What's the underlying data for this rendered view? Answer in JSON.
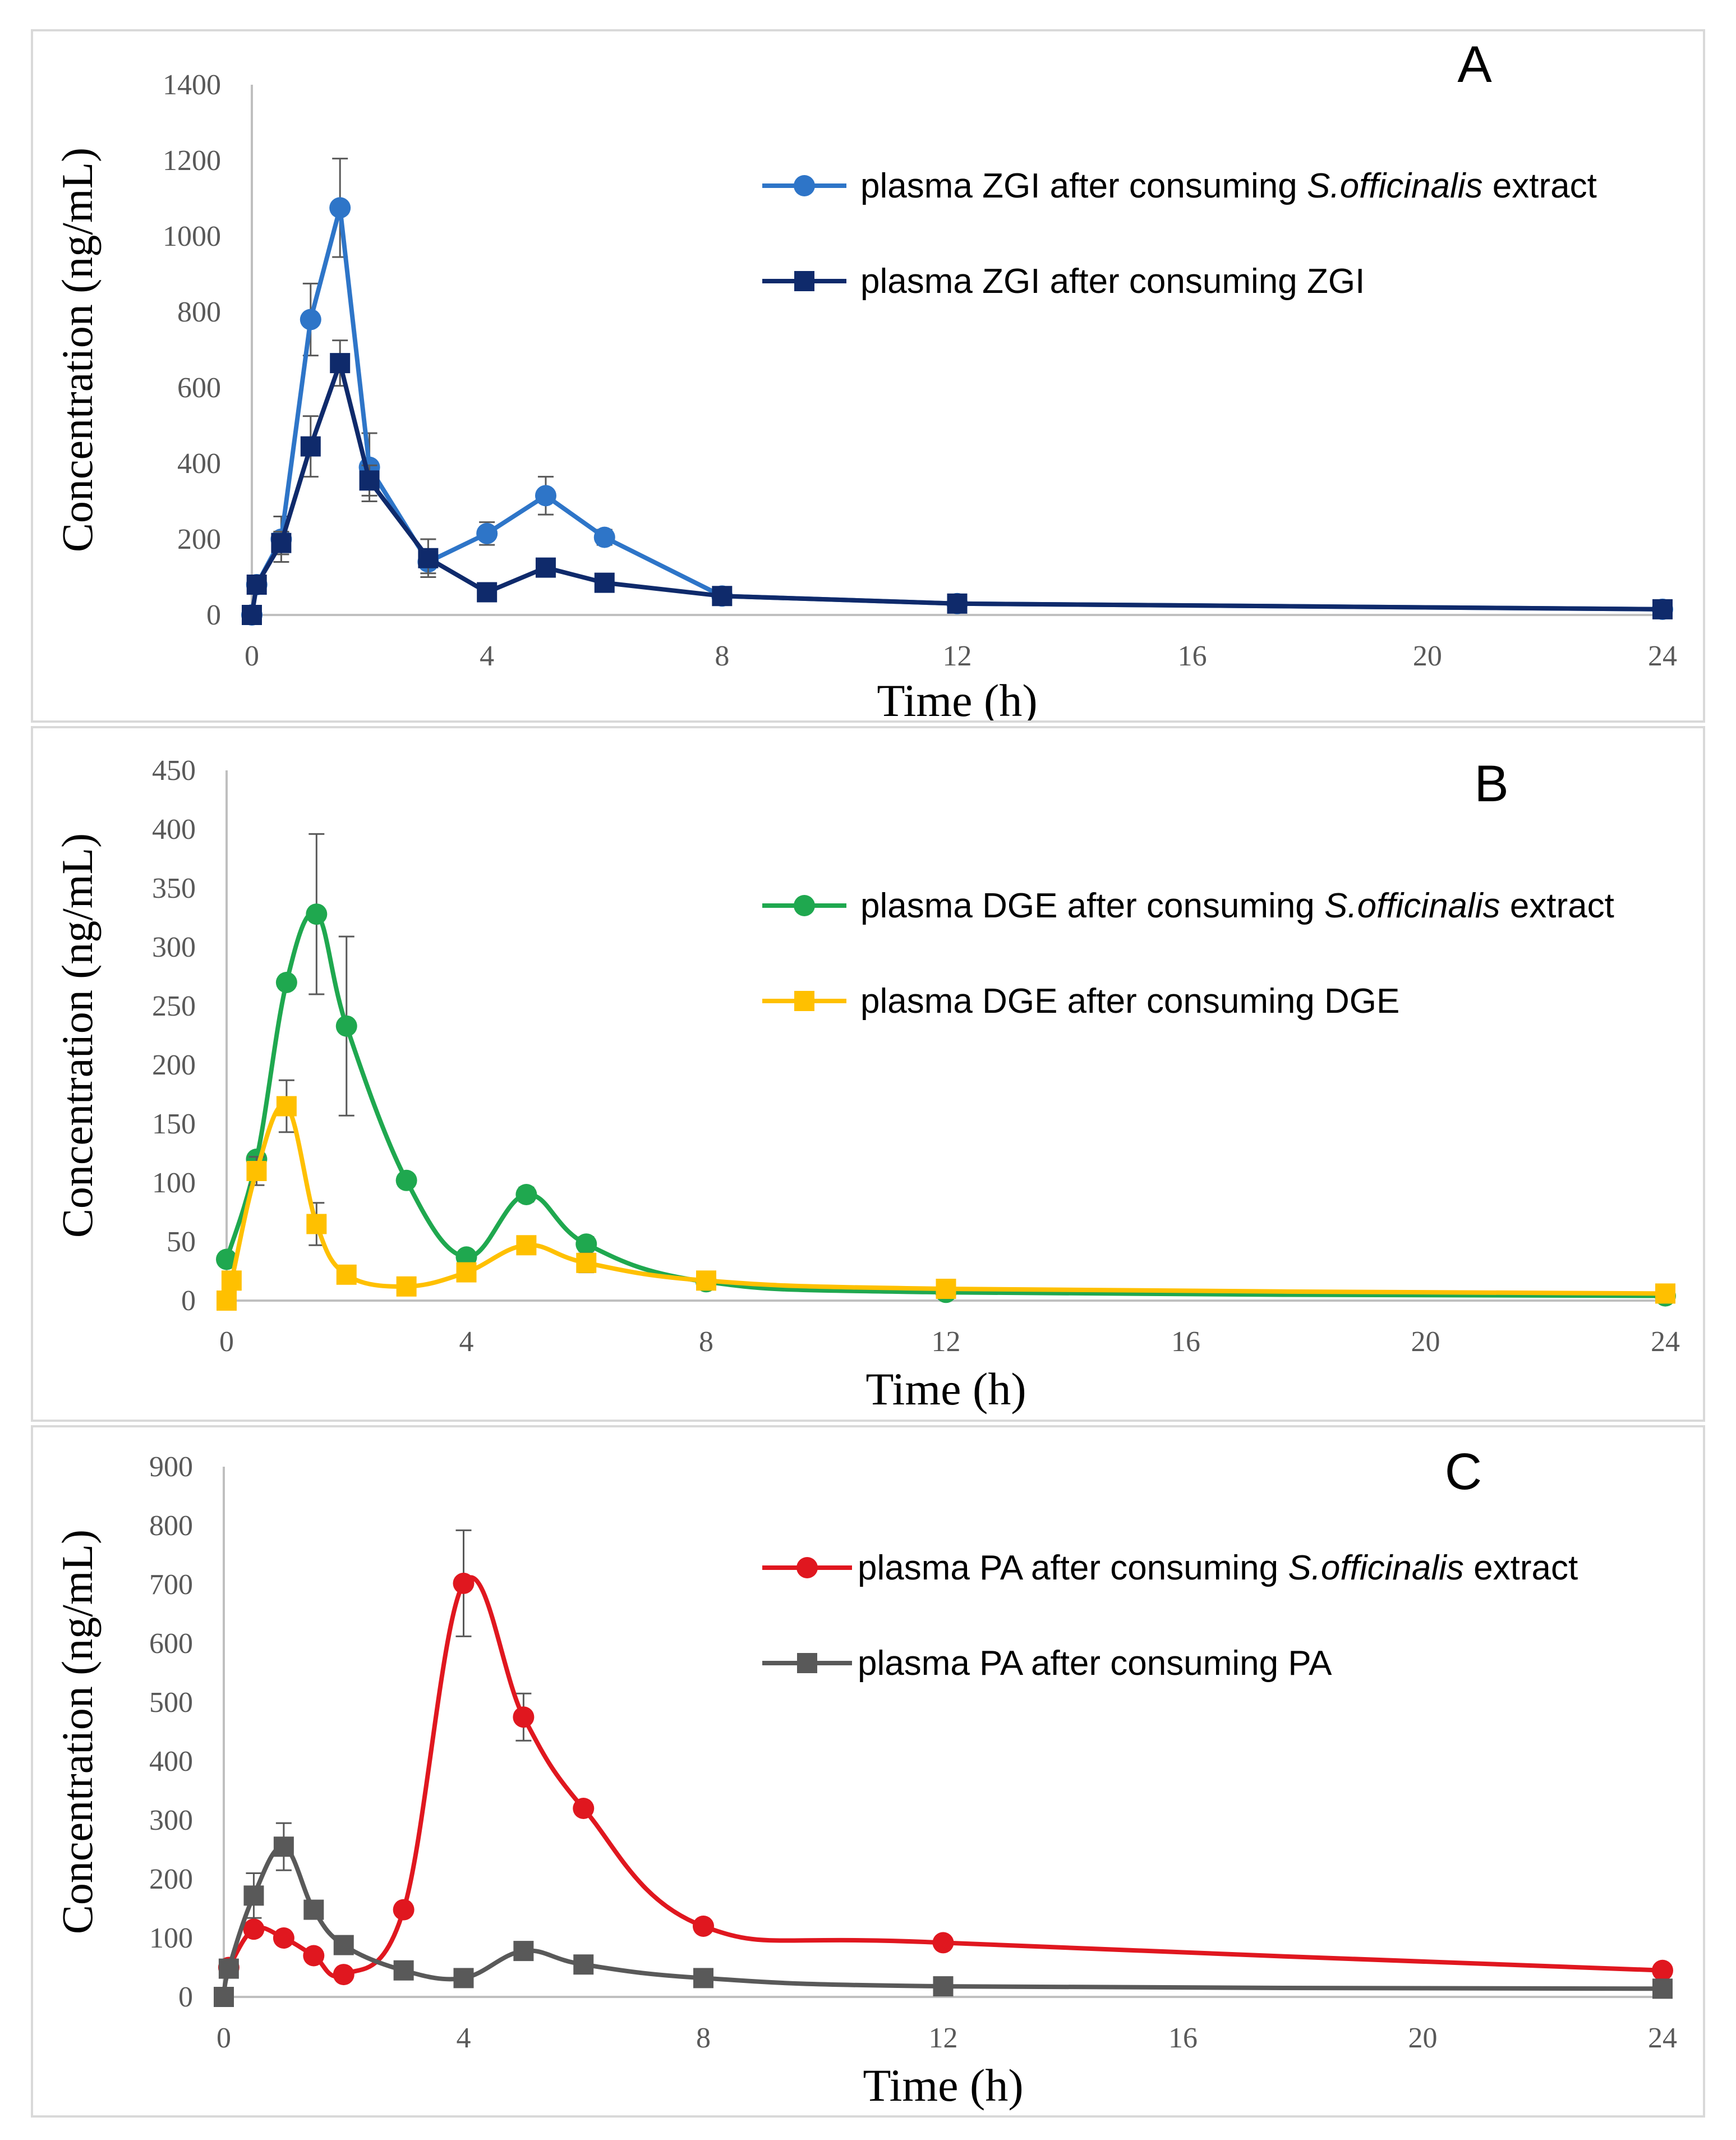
{
  "chart_data": [
    {
      "type": "line",
      "panel_label": "A",
      "xlabel": "Time (h)",
      "ylabel": "Concentration (ng/mL)",
      "xlim": [
        0,
        24
      ],
      "ylim": [
        0,
        1400
      ],
      "xticks": [
        0,
        4,
        8,
        12,
        16,
        20,
        24
      ],
      "yticks": [
        0,
        200,
        400,
        600,
        800,
        1000,
        1200,
        1400
      ],
      "grid": false,
      "legend_position": "top-right",
      "smooth": false,
      "series": [
        {
          "legend_prefix": "plasma ZGI after consuming ",
          "legend_italic": "S.officinalis",
          "legend_suffix": " extract",
          "color": "#2e75c8",
          "marker": "circle",
          "x": [
            0,
            0.083,
            0.5,
            1,
            1.5,
            2,
            3,
            4,
            5,
            6,
            8,
            12,
            24
          ],
          "y": [
            0,
            80,
            200,
            780,
            1075,
            390,
            140,
            215,
            315,
            205,
            50,
            30,
            15
          ],
          "err": [
            0,
            20,
            60,
            95,
            130,
            90,
            30,
            30,
            50,
            20,
            0,
            0,
            0
          ]
        },
        {
          "legend_prefix": "plasma ZGI after consuming ZGI",
          "legend_italic": "",
          "legend_suffix": "",
          "color": "#0f2a6b",
          "marker": "square",
          "x": [
            0,
            0.083,
            0.5,
            1,
            1.5,
            2,
            3,
            4,
            5,
            6,
            8,
            12,
            24
          ],
          "y": [
            0,
            80,
            190,
            445,
            665,
            355,
            150,
            60,
            125,
            85,
            50,
            30,
            15
          ],
          "err": [
            0,
            0,
            30,
            80,
            60,
            40,
            50,
            0,
            0,
            0,
            0,
            0,
            0
          ]
        }
      ]
    },
    {
      "type": "line",
      "panel_label": "B",
      "xlabel": "Time (h)",
      "ylabel": "Concentration (ng/mL)",
      "xlim": [
        0,
        24
      ],
      "ylim": [
        0,
        450
      ],
      "xticks": [
        0,
        4,
        8,
        12,
        16,
        20,
        24
      ],
      "yticks": [
        0,
        50,
        100,
        150,
        200,
        250,
        300,
        350,
        400,
        450
      ],
      "grid": false,
      "legend_position": "top-right",
      "smooth": true,
      "series": [
        {
          "legend_prefix": "plasma DGE after consuming ",
          "legend_italic": "S.officinalis",
          "legend_suffix": " extract",
          "color": "#1fa84f",
          "marker": "circle",
          "x": [
            0,
            0.5,
            1,
            1.5,
            2,
            3,
            4,
            5,
            6,
            8,
            12,
            24
          ],
          "y": [
            35,
            120,
            270,
            328,
            233,
            102,
            37,
            90,
            48,
            16,
            7,
            4
          ],
          "err": [
            0,
            0,
            0,
            68,
            76,
            0,
            0,
            6,
            6,
            0,
            0,
            0
          ]
        },
        {
          "legend_prefix": "plasma DGE after consuming DGE",
          "legend_italic": "",
          "legend_suffix": "",
          "color": "#ffc000",
          "marker": "square",
          "x": [
            0,
            0.083,
            0.5,
            1,
            1.5,
            2,
            3,
            4,
            5,
            6,
            8,
            12,
            24
          ],
          "y": [
            0,
            17,
            110,
            165,
            65,
            22,
            12,
            24,
            47,
            32,
            17,
            10,
            6
          ],
          "err": [
            0,
            0,
            12,
            22,
            18,
            0,
            0,
            0,
            0,
            8,
            0,
            0,
            0
          ]
        }
      ]
    },
    {
      "type": "line",
      "panel_label": "C",
      "xlabel": "Time (h)",
      "ylabel": "Concentration (ng/mL)",
      "xlim": [
        0,
        24
      ],
      "ylim": [
        0,
        900
      ],
      "xticks": [
        0,
        4,
        8,
        12,
        16,
        20,
        24
      ],
      "yticks": [
        0,
        100,
        200,
        300,
        400,
        500,
        600,
        700,
        800,
        900
      ],
      "grid": false,
      "legend_position": "top-right",
      "smooth": true,
      "series": [
        {
          "legend_prefix": "plasma PA after consuming ",
          "legend_italic": "S.officinalis",
          "legend_suffix": " extract",
          "color": "#e0171f",
          "marker": "circle",
          "x": [
            0.083,
            0.5,
            1,
            1.5,
            2,
            3,
            4,
            5,
            6,
            8,
            12,
            24
          ],
          "y": [
            50,
            115,
            100,
            70,
            38,
            148,
            702,
            475,
            320,
            120,
            92,
            45
          ],
          "err": [
            0,
            0,
            0,
            0,
            0,
            0,
            90,
            40,
            0,
            0,
            0,
            0
          ]
        },
        {
          "legend_prefix": "plasma PA after consuming PA",
          "legend_italic": "",
          "legend_suffix": "",
          "color": "#595959",
          "marker": "square",
          "x": [
            0,
            0.083,
            0.5,
            1,
            1.5,
            2,
            3,
            4,
            5,
            6,
            8,
            12,
            24
          ],
          "y": [
            0,
            48,
            172,
            255,
            148,
            88,
            45,
            32,
            78,
            55,
            32,
            18,
            14
          ],
          "err": [
            0,
            0,
            38,
            40,
            0,
            0,
            0,
            0,
            0,
            0,
            0,
            0,
            0
          ]
        }
      ]
    }
  ]
}
